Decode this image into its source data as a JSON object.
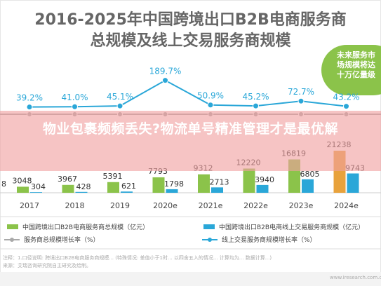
{
  "title_line1": "2016-2025年中国跨境出口B2B电商服务商",
  "title_line2": "总规模及线上交易服务商规模",
  "badge": {
    "line1": "未来服务市",
    "line2": "场规模将达",
    "line3": "十万亿量级"
  },
  "overlay_text": "物业包裹频频丢失?物流单号精准管理才是最优解",
  "colors": {
    "total_bar": "#8bc34a",
    "online_bar": "#2aa7d8",
    "total_growth": "#a9a9a9",
    "online_growth": "#2aa7d8",
    "estimate_bar": "#e8a23c"
  },
  "chart_data": {
    "type": "bar",
    "categories": [
      "2017",
      "2018",
      "2019",
      "2020e",
      "2021e",
      "2022e",
      "2023e",
      "2024e"
    ],
    "bar_labels_total": [
      "3048",
      "3967",
      "5391",
      "7793",
      "9312",
      "12220",
      "16819",
      "21238"
    ],
    "bar_labels_online": [
      "304",
      "428",
      "621",
      "1798",
      "2713",
      "3940",
      "6805",
      "9743"
    ],
    "series": [
      {
        "name": "中国跨境出口B2B电商服务商总规模（亿元）",
        "kind": "bar",
        "values": [
          3048,
          3967,
          5391,
          7793,
          9312,
          12220,
          16819,
          21238
        ]
      },
      {
        "name": "中国跨境出口B2B电商线上交易服务商规模（亿元）",
        "kind": "bar",
        "values": [
          304,
          428,
          621,
          1798,
          2713,
          3940,
          6805,
          9743
        ]
      },
      {
        "name": "服务商总规模增长率（%）",
        "kind": "line",
        "values": [
          null,
          null,
          null,
          null,
          null,
          null,
          null,
          null
        ]
      },
      {
        "name": "线上交易服务商规模增长率（%）",
        "kind": "line",
        "values": [
          39.2,
          41.0,
          45.1,
          189.7,
          50.9,
          45.2,
          72.7,
          43.2
        ]
      }
    ],
    "growth_labels": [
      "39.2%",
      "41.0%",
      "45.1%",
      "189.7%",
      "50.9%",
      "45.2%",
      "72.7%",
      "43.2%"
    ],
    "left_partial_label": "8",
    "legend_position": "bottom"
  },
  "legend": {
    "total_bar": "中国跨境出口B2B电商服务商总规模（亿元）",
    "online_bar": "中国跨境出口B2B电商线上交易服务商规模（亿元）",
    "total_growth": "服务商总规模增长率（%）",
    "online_growth": "线上交易服务商规模增长率（%）"
  },
  "footnotes": {
    "line1": "注释：1.口径说明: 跨境出口B2B电商服务商规模... (特殊情况: 差值小于1时... 以四舍五入的情况... 计算均为... 数据计算...)",
    "line2": "来源：艾瑞咨询研究院自主研究及绘制。"
  },
  "watermark": "www.iresearch.com.cn"
}
